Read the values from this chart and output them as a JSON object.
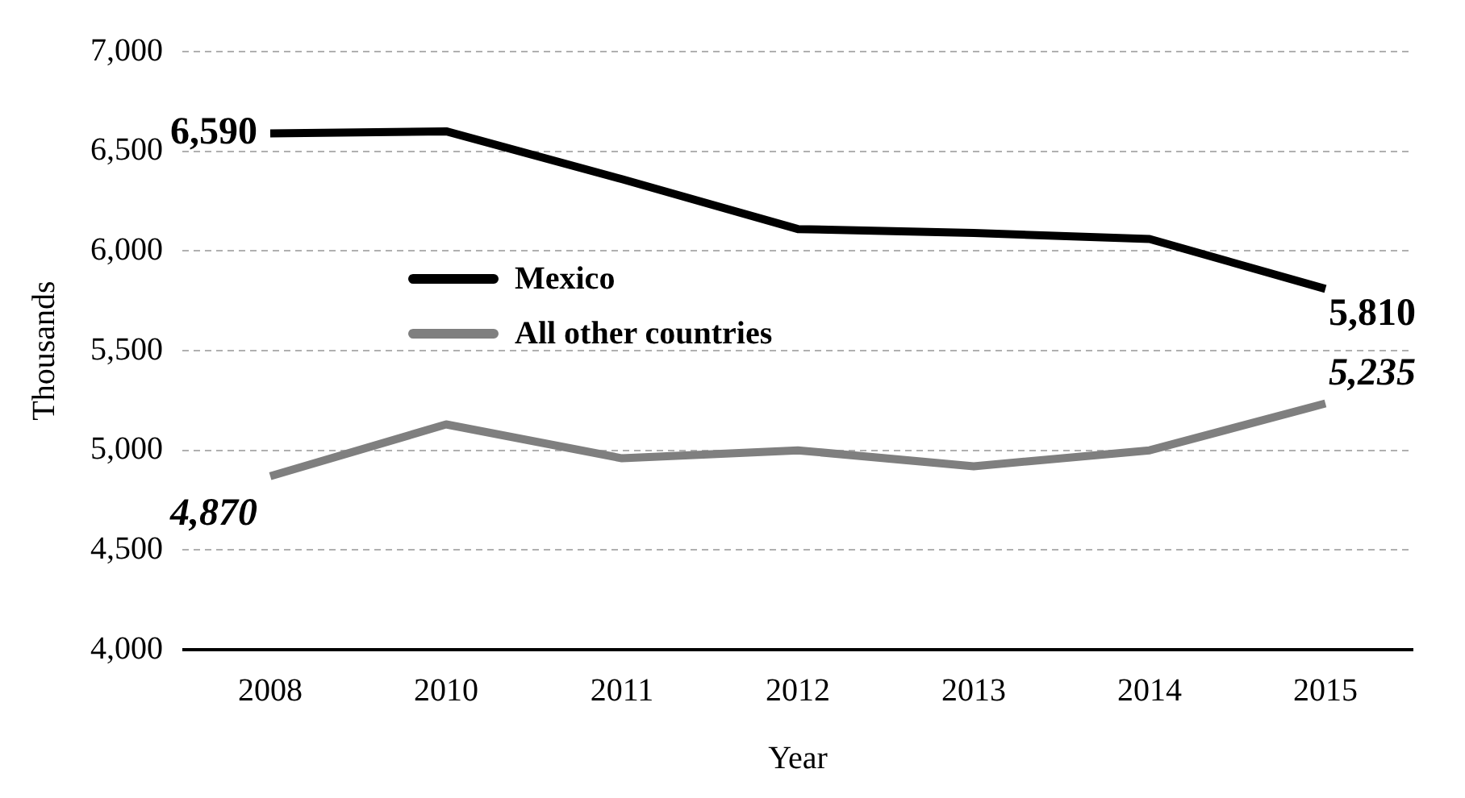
{
  "chart_data": {
    "type": "line",
    "xlabel": "Year",
    "ylabel": "Thousands",
    "categories": [
      "2008",
      "2010",
      "2011",
      "2012",
      "2013",
      "2014",
      "2015"
    ],
    "series": [
      {
        "name": "Mexico",
        "color": "#000000",
        "values": [
          6590,
          6600,
          6360,
          6110,
          6090,
          6060,
          5810
        ],
        "value_labels": [
          "6,590",
          null,
          null,
          null,
          null,
          null,
          "5,810"
        ]
      },
      {
        "name": "All other countries",
        "color": "#7f7f7f",
        "values": [
          4870,
          5130,
          4960,
          5000,
          4920,
          5000,
          5235
        ],
        "value_labels": [
          "4,870",
          null,
          null,
          null,
          null,
          null,
          "5,235"
        ]
      }
    ],
    "ylim": [
      4000,
      7000
    ],
    "yticks": [
      {
        "value": 4000,
        "label": "4,000"
      },
      {
        "value": 4500,
        "label": "4,500"
      },
      {
        "value": 5000,
        "label": "5,000"
      },
      {
        "value": 5500,
        "label": "5,500"
      },
      {
        "value": 6000,
        "label": "6,000"
      },
      {
        "value": 6500,
        "label": "6,500"
      },
      {
        "value": 7000,
        "label": "7,000"
      }
    ],
    "grid": "y",
    "legend": "center",
    "marker": "none",
    "line_style": "solid"
  }
}
